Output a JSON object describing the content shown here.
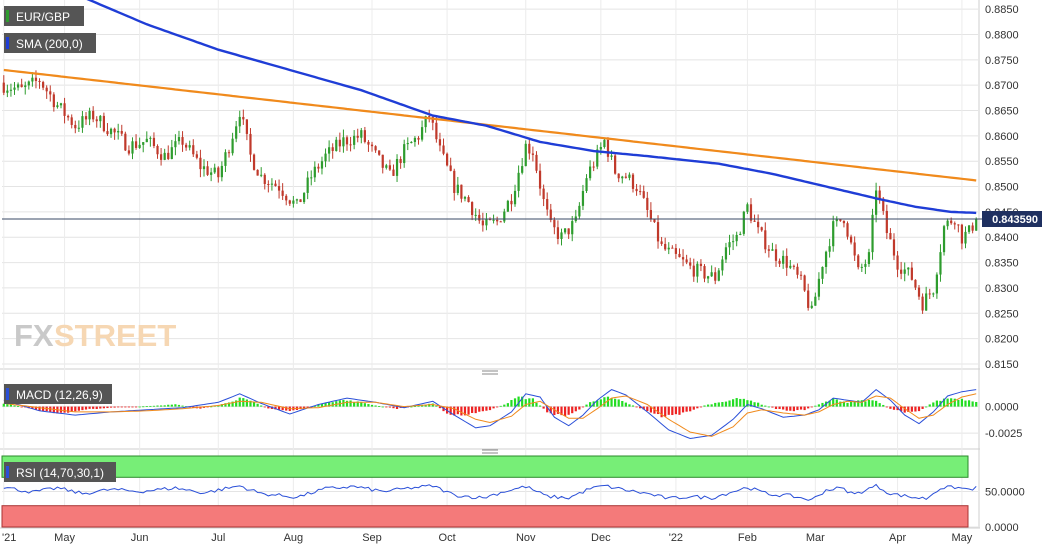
{
  "labels": {
    "pair": "EUR/GBP",
    "sma": "SMA (200,0)",
    "macd": "MACD (12,26,9)",
    "rsi": "RSI (14,70,30,1)",
    "price_tag": "0.843590",
    "watermark_fx": "FX",
    "watermark_street": "STREET"
  },
  "colors": {
    "candle_up": "#2e9c2e",
    "candle_down": "#c0392b",
    "sma": "#1f3dd6",
    "trendline": "#f08a1c",
    "macd_line": "#2a4fd8",
    "signal_line": "#f08a1c",
    "hist_up": "#22dd22",
    "hist_down": "#ee2222",
    "rsi_line": "#2a4fd8",
    "rsi_overbought": "#77ee77",
    "rsi_oversold": "#f47a7a",
    "label_bg": "#555555"
  },
  "chart_data": [
    {
      "type": "candlestick",
      "title": "EUR/GBP",
      "series_names": [
        "EUR/GBP",
        "SMA (200,0)"
      ],
      "x_tick_labels": [
        "'21",
        "May",
        "Jun",
        "Jul",
        "Aug",
        "Sep",
        "Oct",
        "Nov",
        "Dec",
        "'22",
        "Feb",
        "Mar",
        "Apr",
        "May"
      ],
      "x_tick_positions": [
        0,
        17,
        38,
        60,
        81,
        103,
        124,
        146,
        167,
        188,
        208,
        227,
        250,
        268
      ],
      "y_tick_labels": [
        "0.8850",
        "0.8800",
        "0.8750",
        "0.8700",
        "0.8650",
        "0.8600",
        "0.8550",
        "0.8500",
        "0.8450",
        "0.8400",
        "0.8350",
        "0.8300",
        "0.8250",
        "0.8200",
        "0.8150"
      ],
      "ylim": [
        0.8142,
        0.8868
      ],
      "last_price": 0.84359,
      "grid": true,
      "close_anchors": [
        [
          0,
          0.87
        ],
        [
          5,
          0.869
        ],
        [
          10,
          0.871
        ],
        [
          15,
          0.866
        ],
        [
          20,
          0.862
        ],
        [
          25,
          0.864
        ],
        [
          30,
          0.861
        ],
        [
          35,
          0.858
        ],
        [
          40,
          0.859
        ],
        [
          45,
          0.856
        ],
        [
          50,
          0.859
        ],
        [
          55,
          0.854
        ],
        [
          60,
          0.852
        ],
        [
          63,
          0.858
        ],
        [
          66,
          0.865
        ],
        [
          69,
          0.856
        ],
        [
          72,
          0.852
        ],
        [
          77,
          0.85
        ],
        [
          82,
          0.846
        ],
        [
          86,
          0.852
        ],
        [
          90,
          0.856
        ],
        [
          95,
          0.859
        ],
        [
          100,
          0.86
        ],
        [
          104,
          0.856
        ],
        [
          108,
          0.852
        ],
        [
          112,
          0.857
        ],
        [
          116,
          0.86
        ],
        [
          119,
          0.864
        ],
        [
          122,
          0.857
        ],
        [
          126,
          0.85
        ],
        [
          130,
          0.847
        ],
        [
          134,
          0.842
        ],
        [
          138,
          0.843
        ],
        [
          142,
          0.848
        ],
        [
          146,
          0.858
        ],
        [
          148,
          0.857
        ],
        [
          151,
          0.847
        ],
        [
          153,
          0.842
        ],
        [
          156,
          0.84
        ],
        [
          160,
          0.843
        ],
        [
          163,
          0.852
        ],
        [
          166,
          0.856
        ],
        [
          168,
          0.859
        ],
        [
          171,
          0.853
        ],
        [
          174,
          0.852
        ],
        [
          177,
          0.85
        ],
        [
          180,
          0.845
        ],
        [
          184,
          0.838
        ],
        [
          188,
          0.836
        ],
        [
          192,
          0.834
        ],
        [
          195,
          0.833
        ],
        [
          199,
          0.832
        ],
        [
          202,
          0.838
        ],
        [
          205,
          0.84
        ],
        [
          208,
          0.846
        ],
        [
          211,
          0.841
        ],
        [
          215,
          0.837
        ],
        [
          219,
          0.835
        ],
        [
          223,
          0.831
        ],
        [
          226,
          0.825
        ],
        [
          229,
          0.835
        ],
        [
          232,
          0.842
        ],
        [
          235,
          0.844
        ],
        [
          239,
          0.833
        ],
        [
          242,
          0.836
        ],
        [
          244,
          0.85
        ],
        [
          247,
          0.841
        ],
        [
          250,
          0.835
        ],
        [
          254,
          0.832
        ],
        [
          257,
          0.827
        ],
        [
          260,
          0.83
        ],
        [
          263,
          0.842
        ],
        [
          266,
          0.844
        ],
        [
          268,
          0.84
        ],
        [
          270,
          0.841
        ],
        [
          272,
          0.8436
        ]
      ],
      "sma_200": [
        [
          0,
          0.89
        ],
        [
          20,
          0.888
        ],
        [
          40,
          0.882
        ],
        [
          60,
          0.877
        ],
        [
          80,
          0.873
        ],
        [
          100,
          0.869
        ],
        [
          120,
          0.864
        ],
        [
          135,
          0.862
        ],
        [
          150,
          0.8588
        ],
        [
          165,
          0.857
        ],
        [
          180,
          0.856
        ],
        [
          200,
          0.8545
        ],
        [
          215,
          0.8525
        ],
        [
          230,
          0.85
        ],
        [
          245,
          0.8475
        ],
        [
          255,
          0.846
        ],
        [
          265,
          0.845
        ],
        [
          272,
          0.8448
        ]
      ],
      "trendline": [
        [
          0,
          0.873
        ],
        [
          272,
          0.8512
        ]
      ]
    },
    {
      "type": "bar+line",
      "title": "MACD (12,26,9)",
      "series_names": [
        "MACD",
        "Signal",
        "Histogram"
      ],
      "y_tick_labels": [
        "0.0000",
        "-0.0025"
      ],
      "ylim": [
        -0.0038,
        0.0025
      ],
      "histogram": [
        [
          0,
          0.0003
        ],
        [
          8,
          -0.0002
        ],
        [
          15,
          -0.0007
        ],
        [
          22,
          -0.0003
        ],
        [
          30,
          -0.0001
        ],
        [
          38,
          0.0
        ],
        [
          48,
          0.0002
        ],
        [
          55,
          -0.0002
        ],
        [
          62,
          0.0003
        ],
        [
          66,
          0.0008
        ],
        [
          70,
          0.0004
        ],
        [
          74,
          -0.0002
        ],
        [
          80,
          -0.0004
        ],
        [
          86,
          -0.0001
        ],
        [
          90,
          0.0004
        ],
        [
          95,
          0.0006
        ],
        [
          100,
          0.0004
        ],
        [
          104,
          0.0001
        ],
        [
          110,
          -0.0002
        ],
        [
          116,
          0.0001
        ],
        [
          120,
          0.0003
        ],
        [
          124,
          -0.0006
        ],
        [
          128,
          -0.0009
        ],
        [
          132,
          -0.0006
        ],
        [
          136,
          -0.0003
        ],
        [
          140,
          0.0002
        ],
        [
          144,
          0.0009
        ],
        [
          148,
          0.0007
        ],
        [
          152,
          -0.0005
        ],
        [
          156,
          -0.0009
        ],
        [
          160,
          -0.0005
        ],
        [
          164,
          0.0004
        ],
        [
          168,
          0.0009
        ],
        [
          172,
          0.0006
        ],
        [
          176,
          0.0001
        ],
        [
          180,
          -0.0004
        ],
        [
          184,
          -0.0009
        ],
        [
          188,
          -0.0008
        ],
        [
          192,
          -0.0004
        ],
        [
          196,
          0.0001
        ],
        [
          200,
          0.0004
        ],
        [
          204,
          0.0007
        ],
        [
          208,
          0.0007
        ],
        [
          212,
          0.0002
        ],
        [
          216,
          -0.0002
        ],
        [
          220,
          -0.0004
        ],
        [
          224,
          -0.0003
        ],
        [
          228,
          0.0002
        ],
        [
          232,
          0.0007
        ],
        [
          236,
          0.0004
        ],
        [
          240,
          0.0006
        ],
        [
          244,
          0.0005
        ],
        [
          248,
          -0.0002
        ],
        [
          252,
          -0.0005
        ],
        [
          256,
          -0.0004
        ],
        [
          260,
          0.0004
        ],
        [
          264,
          0.0008
        ],
        [
          268,
          0.0007
        ],
        [
          272,
          0.0005
        ]
      ],
      "macd_line": [
        [
          0,
          0.0006
        ],
        [
          10,
          -0.0004
        ],
        [
          20,
          -0.0008
        ],
        [
          30,
          -0.0005
        ],
        [
          40,
          -0.0003
        ],
        [
          50,
          -0.0001
        ],
        [
          60,
          0.0004
        ],
        [
          66,
          0.0012
        ],
        [
          72,
          0.0003
        ],
        [
          80,
          -0.0007
        ],
        [
          88,
          0.0002
        ],
        [
          96,
          0.0008
        ],
        [
          104,
          0.0004
        ],
        [
          112,
          -0.0001
        ],
        [
          120,
          0.0005
        ],
        [
          126,
          -0.0008
        ],
        [
          132,
          -0.002
        ],
        [
          136,
          -0.0018
        ],
        [
          142,
          -0.0005
        ],
        [
          146,
          0.0012
        ],
        [
          150,
          0.0009
        ],
        [
          154,
          -0.001
        ],
        [
          158,
          -0.0018
        ],
        [
          162,
          -0.0008
        ],
        [
          166,
          0.0006
        ],
        [
          170,
          0.0016
        ],
        [
          174,
          0.0011
        ],
        [
          180,
          -0.0005
        ],
        [
          186,
          -0.0022
        ],
        [
          192,
          -0.003
        ],
        [
          198,
          -0.0027
        ],
        [
          204,
          -0.0012
        ],
        [
          208,
          0.0002
        ],
        [
          212,
          -0.0002
        ],
        [
          218,
          -0.001
        ],
        [
          224,
          -0.0008
        ],
        [
          228,
          -0.0003
        ],
        [
          232,
          0.0008
        ],
        [
          236,
          0.0006
        ],
        [
          240,
          0.0004
        ],
        [
          244,
          0.0016
        ],
        [
          248,
          0.0006
        ],
        [
          252,
          -0.0008
        ],
        [
          256,
          -0.0016
        ],
        [
          260,
          -0.0005
        ],
        [
          264,
          0.001
        ],
        [
          268,
          0.0014
        ],
        [
          272,
          0.0016
        ]
      ],
      "signal_line": [
        [
          0,
          0.0003
        ],
        [
          10,
          -0.0001
        ],
        [
          20,
          -0.0005
        ],
        [
          30,
          -0.0005
        ],
        [
          40,
          -0.0004
        ],
        [
          50,
          -0.0002
        ],
        [
          60,
          0.0001
        ],
        [
          66,
          0.0005
        ],
        [
          72,
          0.0004
        ],
        [
          80,
          -0.0002
        ],
        [
          88,
          -0.0001
        ],
        [
          96,
          0.0004
        ],
        [
          104,
          0.0004
        ],
        [
          112,
          0.0
        ],
        [
          120,
          0.0002
        ],
        [
          126,
          -0.0002
        ],
        [
          132,
          -0.0012
        ],
        [
          136,
          -0.0015
        ],
        [
          142,
          -0.0009
        ],
        [
          146,
          0.0002
        ],
        [
          150,
          0.0005
        ],
        [
          154,
          -0.0003
        ],
        [
          158,
          -0.0011
        ],
        [
          162,
          -0.0011
        ],
        [
          166,
          -0.0002
        ],
        [
          170,
          0.0008
        ],
        [
          174,
          0.001
        ],
        [
          180,
          0.0002
        ],
        [
          186,
          -0.0012
        ],
        [
          192,
          -0.0024
        ],
        [
          198,
          -0.0028
        ],
        [
          204,
          -0.0019
        ],
        [
          208,
          -0.0006
        ],
        [
          212,
          -0.0003
        ],
        [
          218,
          -0.0006
        ],
        [
          224,
          -0.0008
        ],
        [
          228,
          -0.0005
        ],
        [
          232,
          0.0002
        ],
        [
          236,
          0.0005
        ],
        [
          240,
          0.0004
        ],
        [
          244,
          0.001
        ],
        [
          248,
          0.0008
        ],
        [
          252,
          -0.0002
        ],
        [
          256,
          -0.0011
        ],
        [
          260,
          -0.0008
        ],
        [
          264,
          0.0002
        ],
        [
          268,
          0.0009
        ],
        [
          272,
          0.0012
        ]
      ]
    },
    {
      "type": "line",
      "title": "RSI (14,70,30,1)",
      "series_names": [
        "RSI"
      ],
      "y_tick_labels": [
        "50.0000",
        "0.0000"
      ],
      "ylim": [
        0,
        100
      ],
      "overbought": 70,
      "oversold": 30,
      "values": [
        [
          0,
          56
        ],
        [
          8,
          49
        ],
        [
          15,
          55
        ],
        [
          22,
          47
        ],
        [
          30,
          53
        ],
        [
          38,
          50
        ],
        [
          48,
          55
        ],
        [
          56,
          48
        ],
        [
          62,
          54
        ],
        [
          66,
          58
        ],
        [
          72,
          47
        ],
        [
          82,
          42
        ],
        [
          90,
          54
        ],
        [
          98,
          57
        ],
        [
          106,
          50
        ],
        [
          114,
          55
        ],
        [
          120,
          58
        ],
        [
          126,
          45
        ],
        [
          134,
          41
        ],
        [
          140,
          50
        ],
        [
          146,
          57
        ],
        [
          152,
          43
        ],
        [
          158,
          41
        ],
        [
          164,
          54
        ],
        [
          168,
          58
        ],
        [
          174,
          52
        ],
        [
          180,
          47
        ],
        [
          186,
          40
        ],
        [
          192,
          43
        ],
        [
          198,
          41
        ],
        [
          204,
          50
        ],
        [
          208,
          56
        ],
        [
          214,
          46
        ],
        [
          220,
          44
        ],
        [
          226,
          38
        ],
        [
          230,
          52
        ],
        [
          234,
          55
        ],
        [
          238,
          46
        ],
        [
          244,
          58
        ],
        [
          248,
          47
        ],
        [
          254,
          42
        ],
        [
          258,
          40
        ],
        [
          262,
          55
        ],
        [
          266,
          56
        ],
        [
          270,
          53
        ],
        [
          272,
          55
        ]
      ]
    }
  ]
}
